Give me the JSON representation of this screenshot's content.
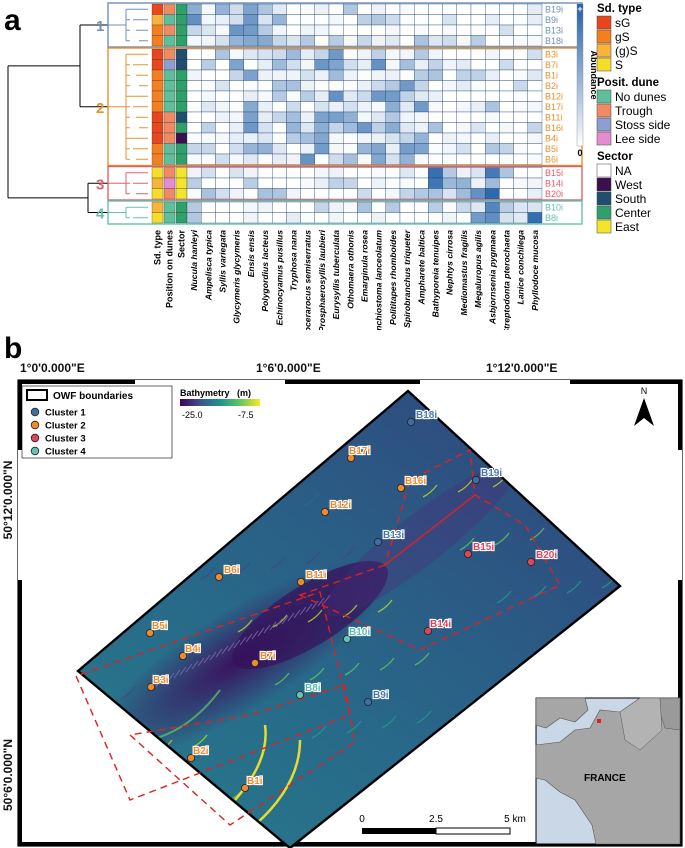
{
  "panel_a": {
    "label": "a",
    "clusters": [
      {
        "id": "1",
        "color": "#6f90b8",
        "samples": [
          "B19i",
          "B9i",
          "B13i",
          "B18i"
        ]
      },
      {
        "id": "2",
        "color": "#e8912c",
        "samples": [
          "B3i",
          "B7i",
          "B1i",
          "B2i",
          "B12i",
          "B17i",
          "B11i",
          "B16i",
          "B4i",
          "B5i",
          "B6i"
        ]
      },
      {
        "id": "3",
        "color": "#e0606a",
        "samples": [
          "B15i",
          "B14i",
          "B20i"
        ]
      },
      {
        "id": "4",
        "color": "#66c2b0",
        "samples": [
          "B10i",
          "B8i"
        ]
      }
    ],
    "annotation_columns": [
      "Sd. type",
      "Position on dunes",
      "Sector"
    ],
    "species": [
      "Nucula hanleyi",
      "Ampelisca typica",
      "Syllis variegata",
      "Glycymeris glycymeris",
      "Ensis ensis",
      "Polygordius lacteus",
      "Echinocyamus pusillus",
      "Tryphosa nana",
      "Animocerarocus semiserratus",
      "Prosphaerosyllis laubieri",
      "Eurysyllis tuberculata",
      "Othomaera othonis",
      "Emarginula rosea",
      "Branchiostoma lanceolatum",
      "Polititapes rhomboides",
      "Spirobranchus triqueter",
      "Ampharete baltica",
      "Bathyporeia tenuipes",
      "Nephtys cirrosa",
      "Mediomastus fragilis",
      "Megaluropus agilis",
      "Asbjornsenia pygmaea",
      "Streptodonta pterochaeta",
      "Lanice conchilega",
      "Phyllodoce mucosa"
    ],
    "abundance_scale": {
      "label": "Abundance",
      "max_label": "+",
      "min_label": "0",
      "low_color": "#ffffff",
      "high_color": "#1f5fa8"
    },
    "legend": {
      "sd_type": {
        "title": "Sd. type",
        "items": [
          {
            "label": "sG",
            "color": "#e8461c"
          },
          {
            "label": "gS",
            "color": "#f57f20"
          },
          {
            "label": "(g)S",
            "color": "#f8b33a"
          },
          {
            "label": "S",
            "color": "#f6dd2a"
          }
        ]
      },
      "position": {
        "title": "Posit. dune",
        "items": [
          {
            "label": "No dunes",
            "color": "#5fbf9a"
          },
          {
            "label": "Trough",
            "color": "#f08a62"
          },
          {
            "label": "Stoss side",
            "color": "#8d9ed0"
          },
          {
            "label": "Lee side",
            "color": "#e38ccf"
          }
        ]
      },
      "sector": {
        "title": "Sector",
        "items": [
          {
            "label": "NA",
            "color": "#ffffff"
          },
          {
            "label": "West",
            "color": "#3b0f4f"
          },
          {
            "label": "South",
            "color": "#1f4e6e"
          },
          {
            "label": "Center",
            "color": "#2fa06a"
          },
          {
            "label": "East",
            "color": "#f2e52a"
          }
        ]
      }
    }
  },
  "panel_b": {
    "label": "b",
    "lon_labels": [
      "1°0'0.000\"E",
      "1°6'0.000\"E",
      "1°12'0.000\"E"
    ],
    "lat_labels": [
      "50°12'0.000\"N",
      "50°6'0.000\"N"
    ],
    "legend": {
      "boundary": "OWF boundaries",
      "clusters": [
        {
          "label": "Cluster 1",
          "color": "#3f6ea3"
        },
        {
          "label": "Cluster 2",
          "color": "#f08a2a"
        },
        {
          "label": "Cluster 3",
          "color": "#e0445a"
        },
        {
          "label": "Cluster 4",
          "color": "#62c4b4"
        }
      ]
    },
    "bathymetry": {
      "title": "Bathymetry",
      "unit": "(m)",
      "min": "-25.0",
      "max": "-7.5"
    },
    "north": "N",
    "scalebar": {
      "labels": [
        "0",
        "2.5",
        "5 km"
      ]
    },
    "inset_label": "FRANCE",
    "stations": [
      {
        "name": "B18i",
        "cluster": 1
      },
      {
        "name": "B19i",
        "cluster": 1
      },
      {
        "name": "B13i",
        "cluster": 1
      },
      {
        "name": "B9i",
        "cluster": 1
      },
      {
        "name": "B17i",
        "cluster": 2
      },
      {
        "name": "B16i",
        "cluster": 2
      },
      {
        "name": "B12i",
        "cluster": 2
      },
      {
        "name": "B6i",
        "cluster": 2
      },
      {
        "name": "B11i",
        "cluster": 2
      },
      {
        "name": "B5i",
        "cluster": 2
      },
      {
        "name": "B4i",
        "cluster": 2
      },
      {
        "name": "B7i",
        "cluster": 2
      },
      {
        "name": "B3i",
        "cluster": 2
      },
      {
        "name": "B2i",
        "cluster": 2
      },
      {
        "name": "B1i",
        "cluster": 2
      },
      {
        "name": "B15i",
        "cluster": 3
      },
      {
        "name": "B20i",
        "cluster": 3
      },
      {
        "name": "B14i",
        "cluster": 3
      },
      {
        "name": "B10i",
        "cluster": 4
      },
      {
        "name": "B8i",
        "cluster": 4
      }
    ]
  }
}
